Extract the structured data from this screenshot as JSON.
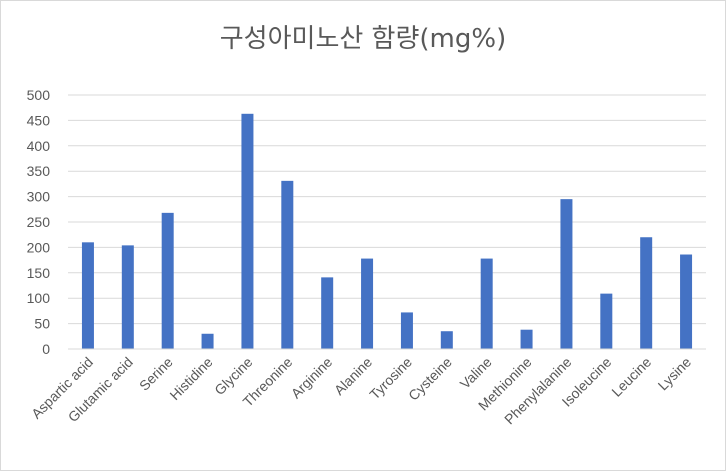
{
  "chart_data": {
    "type": "bar",
    "title": "구성아미노산 함량(mg%)",
    "xlabel": "",
    "ylabel": "",
    "ylim": [
      0,
      500
    ],
    "yticks": [
      0,
      50,
      100,
      150,
      200,
      250,
      300,
      350,
      400,
      450,
      500
    ],
    "grid": true,
    "legend": "none",
    "bar_color": "#4472c4",
    "grid_color": "#d9d9d9",
    "categories": [
      "Aspartic acid",
      "Glutamic acid",
      "Serine",
      "Histidine",
      "Glycine",
      "Threonine",
      "Arginine",
      "Alanine",
      "Tyrosine",
      "Cysteine",
      "Valine",
      "Methionine",
      "Phenylalanine",
      "Isoleucine",
      "Leucine",
      "Lysine"
    ],
    "values": [
      210,
      204,
      268,
      30,
      463,
      331,
      141,
      178,
      72,
      35,
      178,
      38,
      295,
      109,
      220,
      186
    ]
  }
}
